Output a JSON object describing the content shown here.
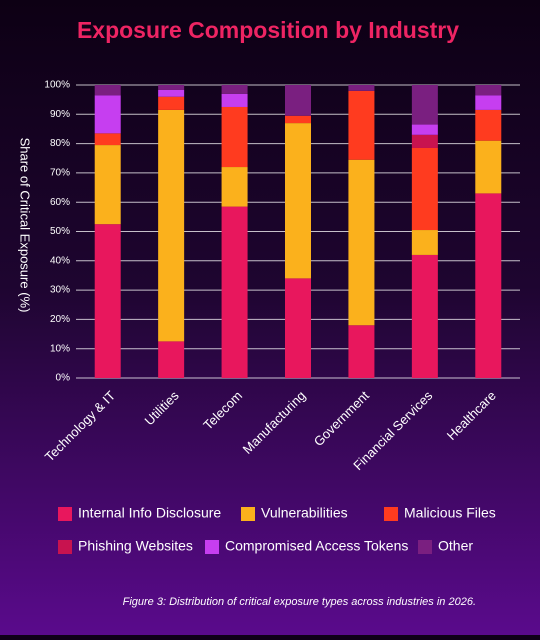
{
  "chart_data": {
    "type": "stacked_bar",
    "title": "Exposure Composition by Industry",
    "y_label": "Share of Critical Exposure (%)",
    "categories": [
      "Technology & IT",
      "Utilities",
      "Telecom",
      "Manufacturing",
      "Government",
      "Financial Services",
      "Healthcare"
    ],
    "series": [
      {
        "name": "Internal Info Disclosure",
        "color": "#e8175d",
        "values": [
          52.5,
          12.5,
          58.5,
          34,
          18,
          42,
          63
        ]
      },
      {
        "name": "Vulnerabilities",
        "color": "#fbb11c",
        "values": [
          27,
          79,
          13.5,
          53,
          56.5,
          8.5,
          18
        ]
      },
      {
        "name": "Malicious Files",
        "color": "#ff3b1f",
        "values": [
          4,
          4.5,
          20.5,
          2.5,
          23.5,
          28,
          10.5
        ]
      },
      {
        "name": "Phishing Websites",
        "color": "#c8134f",
        "values": [
          0,
          0,
          0,
          0,
          0,
          4.5,
          0
        ]
      },
      {
        "name": "Compromised Access Tokens",
        "color": "#c63ef0",
        "values": [
          13,
          2.3,
          4.5,
          0,
          0,
          3.5,
          5
        ]
      },
      {
        "name": "Other",
        "color": "#7a1f80",
        "values": [
          3.5,
          1.7,
          3,
          10.5,
          2,
          13.5,
          3.5
        ]
      }
    ],
    "ylim": [
      0,
      100
    ],
    "yticks": [
      {
        "value": 0,
        "label": "0%"
      },
      {
        "value": 10,
        "label": "10%"
      },
      {
        "value": 20,
        "label": "20%"
      },
      {
        "value": 30,
        "label": "30%"
      },
      {
        "value": 40,
        "label": "40%"
      },
      {
        "value": 50,
        "label": "50%"
      },
      {
        "value": 60,
        "label": "60%"
      },
      {
        "value": 70,
        "label": "70%"
      },
      {
        "value": 80,
        "label": "80%"
      },
      {
        "value": 90,
        "label": "90%"
      },
      {
        "value": 100,
        "label": "100%"
      }
    ],
    "grid": true,
    "caption": "Figure 3: Distribution of critical exposure types across industries in 2026."
  }
}
